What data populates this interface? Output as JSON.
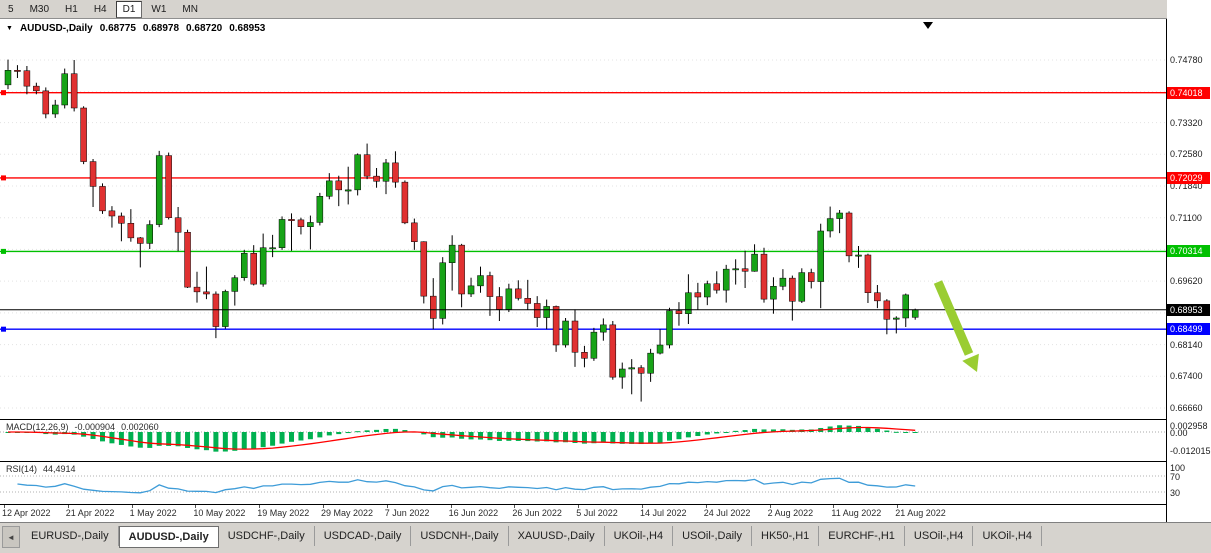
{
  "toolbar": {
    "periods": [
      "5",
      "M30",
      "H1",
      "H4",
      "D1",
      "W1",
      "MN"
    ],
    "active": "D1"
  },
  "chart": {
    "header": {
      "dropdown_icon": "▼",
      "symbol": "AUDUSD-,Daily",
      "open": "0.68775",
      "high": "0.68978",
      "low": "0.68720",
      "close": "0.68953"
    },
    "axis_ticks": [
      "0.74780",
      "0.73320",
      "0.72580",
      "0.71840",
      "0.71100",
      "0.69620",
      "0.68140",
      "0.67400",
      "0.66660"
    ],
    "grid_prices": [
      0.7478,
      0.7404,
      0.7332,
      0.7258,
      0.7184,
      0.711,
      0.7036,
      0.6962,
      0.6888,
      0.6814,
      0.674,
      0.6666
    ],
    "levels": [
      {
        "label": "0.74018",
        "price": 0.74018,
        "color": "#ff0000"
      },
      {
        "label": "0.72029",
        "price": 0.72029,
        "color": "#ff0000"
      },
      {
        "label": "0.70314",
        "price": 0.70314,
        "color": "#00c000"
      },
      {
        "label": "0.68499",
        "price": 0.68499,
        "color": "#0000ff"
      }
    ],
    "current_price": {
      "label": "0.68953",
      "price": 0.68953,
      "color": "#000000"
    },
    "arrow_color": "#9acd32",
    "up_color": "#17a317",
    "down_color": "#e03131"
  },
  "macd": {
    "name": "MACD(12,26,9)",
    "value_main": "-0.000904",
    "value_signal": "0.002060",
    "axis": [
      "0.002958",
      "0.00",
      "-0.012015"
    ],
    "fast": 12,
    "slow": 26,
    "smoothing": 9,
    "histogram_color": "#00b050",
    "signal_color": "#ff0000"
  },
  "rsi": {
    "name": "RSI(14)",
    "value": "44,4914",
    "axis": [
      "100",
      "70",
      "30"
    ],
    "period": 14,
    "levels": [
      70,
      30
    ],
    "line_color": "#3e9cd8"
  },
  "tabs": {
    "scroll_left": "◄",
    "items": [
      {
        "label": "EURUSD-,Daily",
        "active": false
      },
      {
        "label": "AUDUSD-,Daily",
        "active": true
      },
      {
        "label": "USDCHF-,Daily",
        "active": false
      },
      {
        "label": "USDCAD-,Daily",
        "active": false
      },
      {
        "label": "USDCNH-,Daily",
        "active": false
      },
      {
        "label": "XAUUSD-,Daily",
        "active": false
      },
      {
        "label": "UKOil-,H4",
        "active": false
      },
      {
        "label": "USOil-,Daily",
        "active": false
      },
      {
        "label": "HK50-,H1",
        "active": false
      },
      {
        "label": "EURCHF-,H1",
        "active": false
      },
      {
        "label": "USOil-,H4",
        "active": false
      },
      {
        "label": "UKOil-,H4",
        "active": false
      }
    ]
  },
  "chart_data": {
    "type": "candlestick",
    "title": "AUDUSD-,Daily",
    "symbol": "AUDUSD",
    "timeframe": "Daily",
    "ylim": [
      0.6666,
      0.7478
    ],
    "x_labels": [
      "12 Apr 2022",
      "21 Apr 2022",
      "1 May 2022",
      "10 May 2022",
      "19 May 2022",
      "29 May 2022",
      "7 Jun 2022",
      "16 Jun 2022",
      "26 Jun 2022",
      "5 Jul 2022",
      "14 Jul 2022",
      "24 Jul 2022",
      "2 Aug 2022",
      "11 Aug 2022",
      "21 Aug 2022"
    ],
    "candles": [
      [
        0.742,
        0.7479,
        0.741,
        0.7454
      ],
      [
        0.7454,
        0.7466,
        0.7436,
        0.7453
      ],
      [
        0.7453,
        0.7464,
        0.7398,
        0.7417
      ],
      [
        0.7417,
        0.7425,
        0.7398,
        0.7406
      ],
      [
        0.7406,
        0.7414,
        0.7342,
        0.7352
      ],
      [
        0.7352,
        0.7385,
        0.7343,
        0.7373
      ],
      [
        0.7373,
        0.7458,
        0.7365,
        0.7446
      ],
      [
        0.7446,
        0.7478,
        0.7358,
        0.7366
      ],
      [
        0.7366,
        0.737,
        0.7235,
        0.7241
      ],
      [
        0.7241,
        0.7247,
        0.7135,
        0.7183
      ],
      [
        0.7183,
        0.719,
        0.7119,
        0.7126
      ],
      [
        0.7126,
        0.7137,
        0.7087,
        0.7114
      ],
      [
        0.7114,
        0.7122,
        0.7055,
        0.7097
      ],
      [
        0.7097,
        0.713,
        0.7054,
        0.7063
      ],
      [
        0.7063,
        0.7065,
        0.6994,
        0.705
      ],
      [
        0.705,
        0.7104,
        0.7037,
        0.7094
      ],
      [
        0.7094,
        0.7266,
        0.7088,
        0.7255
      ],
      [
        0.7255,
        0.7262,
        0.7106,
        0.711
      ],
      [
        0.711,
        0.7135,
        0.7032,
        0.7076
      ],
      [
        0.7076,
        0.7082,
        0.6946,
        0.6948
      ],
      [
        0.6948,
        0.6984,
        0.6912,
        0.6937
      ],
      [
        0.6937,
        0.6996,
        0.692,
        0.6932
      ],
      [
        0.6932,
        0.6938,
        0.6829,
        0.6856
      ],
      [
        0.6856,
        0.6942,
        0.6851,
        0.6938
      ],
      [
        0.6938,
        0.6976,
        0.6905,
        0.697
      ],
      [
        0.697,
        0.7035,
        0.6963,
        0.7027
      ],
      [
        0.7027,
        0.7046,
        0.6952,
        0.6955
      ],
      [
        0.6955,
        0.7073,
        0.6949,
        0.704
      ],
      [
        0.704,
        0.707,
        0.7018,
        0.704
      ],
      [
        0.704,
        0.7113,
        0.7035,
        0.7106
      ],
      [
        0.7106,
        0.712,
        0.7033,
        0.7105
      ],
      [
        0.7105,
        0.711,
        0.7071,
        0.7089
      ],
      [
        0.7089,
        0.7115,
        0.7036,
        0.7099
      ],
      [
        0.7099,
        0.7168,
        0.7092,
        0.716
      ],
      [
        0.716,
        0.7214,
        0.7153,
        0.7196
      ],
      [
        0.7196,
        0.7208,
        0.7137,
        0.7175
      ],
      [
        0.7175,
        0.7229,
        0.7141,
        0.7175
      ],
      [
        0.7175,
        0.726,
        0.7162,
        0.7257
      ],
      [
        0.7257,
        0.7283,
        0.72,
        0.7207
      ],
      [
        0.7207,
        0.7226,
        0.718,
        0.7195
      ],
      [
        0.7195,
        0.7247,
        0.7165,
        0.7238
      ],
      [
        0.7238,
        0.7265,
        0.718,
        0.7193
      ],
      [
        0.7193,
        0.7197,
        0.7095,
        0.7098
      ],
      [
        0.7098,
        0.7108,
        0.7035,
        0.7054
      ],
      [
        0.7054,
        0.7055,
        0.691,
        0.6927
      ],
      [
        0.6927,
        0.6969,
        0.685,
        0.6875
      ],
      [
        0.6875,
        0.7018,
        0.6861,
        0.7005
      ],
      [
        0.7005,
        0.7069,
        0.694,
        0.7046
      ],
      [
        0.7046,
        0.7049,
        0.6901,
        0.6932
      ],
      [
        0.6932,
        0.697,
        0.6925,
        0.6951
      ],
      [
        0.6951,
        0.6996,
        0.6935,
        0.6975
      ],
      [
        0.6975,
        0.6984,
        0.6881,
        0.6926
      ],
      [
        0.6926,
        0.6948,
        0.6869,
        0.6896
      ],
      [
        0.6896,
        0.6956,
        0.689,
        0.6944
      ],
      [
        0.6944,
        0.6964,
        0.6917,
        0.6922
      ],
      [
        0.6922,
        0.6965,
        0.6895,
        0.691
      ],
      [
        0.691,
        0.6927,
        0.6855,
        0.6877
      ],
      [
        0.6877,
        0.6919,
        0.685,
        0.6903
      ],
      [
        0.6903,
        0.6905,
        0.6797,
        0.6813
      ],
      [
        0.6813,
        0.6876,
        0.6807,
        0.6869
      ],
      [
        0.6869,
        0.6896,
        0.6762,
        0.6796
      ],
      [
        0.6796,
        0.6811,
        0.6761,
        0.6782
      ],
      [
        0.6782,
        0.6853,
        0.6776,
        0.6843
      ],
      [
        0.6843,
        0.6875,
        0.6823,
        0.686
      ],
      [
        0.686,
        0.6869,
        0.6732,
        0.6738
      ],
      [
        0.6738,
        0.6772,
        0.6711,
        0.6757
      ],
      [
        0.6757,
        0.678,
        0.6698,
        0.676
      ],
      [
        0.676,
        0.6766,
        0.6681,
        0.6747
      ],
      [
        0.6747,
        0.6804,
        0.6727,
        0.6794
      ],
      [
        0.6794,
        0.685,
        0.6791,
        0.6813
      ],
      [
        0.6813,
        0.69,
        0.6805,
        0.6893
      ],
      [
        0.6893,
        0.6913,
        0.6858,
        0.6886
      ],
      [
        0.6886,
        0.6978,
        0.6862,
        0.6935
      ],
      [
        0.6935,
        0.6958,
        0.6895,
        0.6925
      ],
      [
        0.6925,
        0.6963,
        0.6906,
        0.6956
      ],
      [
        0.6956,
        0.6985,
        0.6933,
        0.6941
      ],
      [
        0.6941,
        0.7,
        0.6912,
        0.699
      ],
      [
        0.699,
        0.7013,
        0.6954,
        0.6991
      ],
      [
        0.6991,
        0.7033,
        0.6946,
        0.6985
      ],
      [
        0.6985,
        0.7048,
        0.6984,
        0.7025
      ],
      [
        0.7025,
        0.704,
        0.6912,
        0.692
      ],
      [
        0.692,
        0.6971,
        0.6886,
        0.695
      ],
      [
        0.695,
        0.699,
        0.6941,
        0.6969
      ],
      [
        0.6969,
        0.6975,
        0.687,
        0.6915
      ],
      [
        0.6915,
        0.6992,
        0.6911,
        0.6982
      ],
      [
        0.6982,
        0.6991,
        0.6945,
        0.6961
      ],
      [
        0.6961,
        0.7096,
        0.6899,
        0.7079
      ],
      [
        0.7079,
        0.7136,
        0.7064,
        0.7108
      ],
      [
        0.7108,
        0.7128,
        0.7074,
        0.7121
      ],
      [
        0.7121,
        0.7125,
        0.7006,
        0.7021
      ],
      [
        0.7021,
        0.7044,
        0.6993,
        0.7023
      ],
      [
        0.7023,
        0.7026,
        0.6911,
        0.6935
      ],
      [
        0.6935,
        0.6953,
        0.6899,
        0.6916
      ],
      [
        0.6916,
        0.692,
        0.6838,
        0.6873
      ],
      [
        0.6873,
        0.688,
        0.684,
        0.6876
      ],
      [
        0.6876,
        0.6933,
        0.6855,
        0.693
      ],
      [
        0.68775,
        0.68978,
        0.6872,
        0.68953
      ]
    ]
  }
}
